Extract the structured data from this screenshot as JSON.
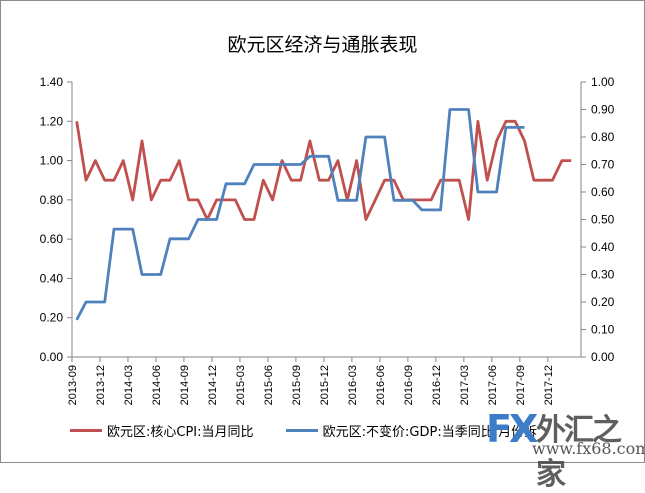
{
  "chart_data": {
    "type": "line",
    "title": "欧元区经济与通胀表现",
    "xlabel": "",
    "ylabel_left": "",
    "ylabel_right": "",
    "ylim_left": [
      0,
      1.4
    ],
    "ylim_right": [
      0,
      1.0
    ],
    "left_ticks": [
      "0.00",
      "0.20",
      "0.40",
      "0.60",
      "0.80",
      "1.00",
      "1.20",
      "1.40"
    ],
    "right_ticks": [
      "0.00",
      "0.10",
      "0.20",
      "0.30",
      "0.40",
      "0.50",
      "0.60",
      "0.70",
      "0.80",
      "0.90",
      "1.00"
    ],
    "x_tick_labels": [
      "2013-09",
      "2013-12",
      "2014-03",
      "2014-06",
      "2014-09",
      "2014-12",
      "2015-03",
      "2015-06",
      "2015-09",
      "2015-12",
      "2016-03",
      "2016-06",
      "2016-09",
      "2016-12",
      "2017-03",
      "2017-06",
      "2017-09",
      "2017-12"
    ],
    "grid": false,
    "legend_position": "bottom",
    "series": [
      {
        "name": "欧元区:核心CPI:当月同比",
        "axis": "left",
        "color": "#c0504d",
        "start": "2013-09",
        "values": [
          1.2,
          0.9,
          1.0,
          0.9,
          0.9,
          1.0,
          0.8,
          1.1,
          0.8,
          0.9,
          0.9,
          1.0,
          0.8,
          0.8,
          0.7,
          0.8,
          0.8,
          0.8,
          0.7,
          0.7,
          0.9,
          0.8,
          1.0,
          0.9,
          0.9,
          1.1,
          0.9,
          0.9,
          1.0,
          0.8,
          1.0,
          0.7,
          0.8,
          0.9,
          0.9,
          0.8,
          0.8,
          0.8,
          0.8,
          0.9,
          0.9,
          0.9,
          0.7,
          1.2,
          0.9,
          1.1,
          1.2,
          1.2,
          1.1,
          0.9,
          0.9,
          0.9,
          1.0,
          1.0
        ]
      },
      {
        "name": "欧元区:不变价:GDP:当季同比:月份拆",
        "axis": "right",
        "color": "#4f81bd",
        "start": "2013-09",
        "values": [
          0.135,
          0.2,
          0.2,
          0.2,
          0.465,
          0.465,
          0.465,
          0.3,
          0.3,
          0.3,
          0.43,
          0.43,
          0.43,
          0.5,
          0.5,
          0.5,
          0.63,
          0.63,
          0.63,
          0.7,
          0.7,
          0.7,
          0.7,
          0.7,
          0.7,
          0.73,
          0.73,
          0.73,
          0.57,
          0.57,
          0.57,
          0.8,
          0.8,
          0.8,
          0.57,
          0.57,
          0.57,
          0.535,
          0.535,
          0.535,
          0.9,
          0.9,
          0.9,
          0.6,
          0.6,
          0.6,
          0.835,
          0.835,
          0.835
        ]
      }
    ]
  },
  "legend": {
    "items": [
      {
        "label": "欧元区:核心CPI:当月同比",
        "color": "#c0504d"
      },
      {
        "label": "欧元区:不变价:GDP:当季同比:月份拆",
        "color": "#4f81bd"
      }
    ]
  },
  "watermark": {
    "logo": "FX",
    "name": "外汇之家",
    "url": "www.fx68.com"
  }
}
